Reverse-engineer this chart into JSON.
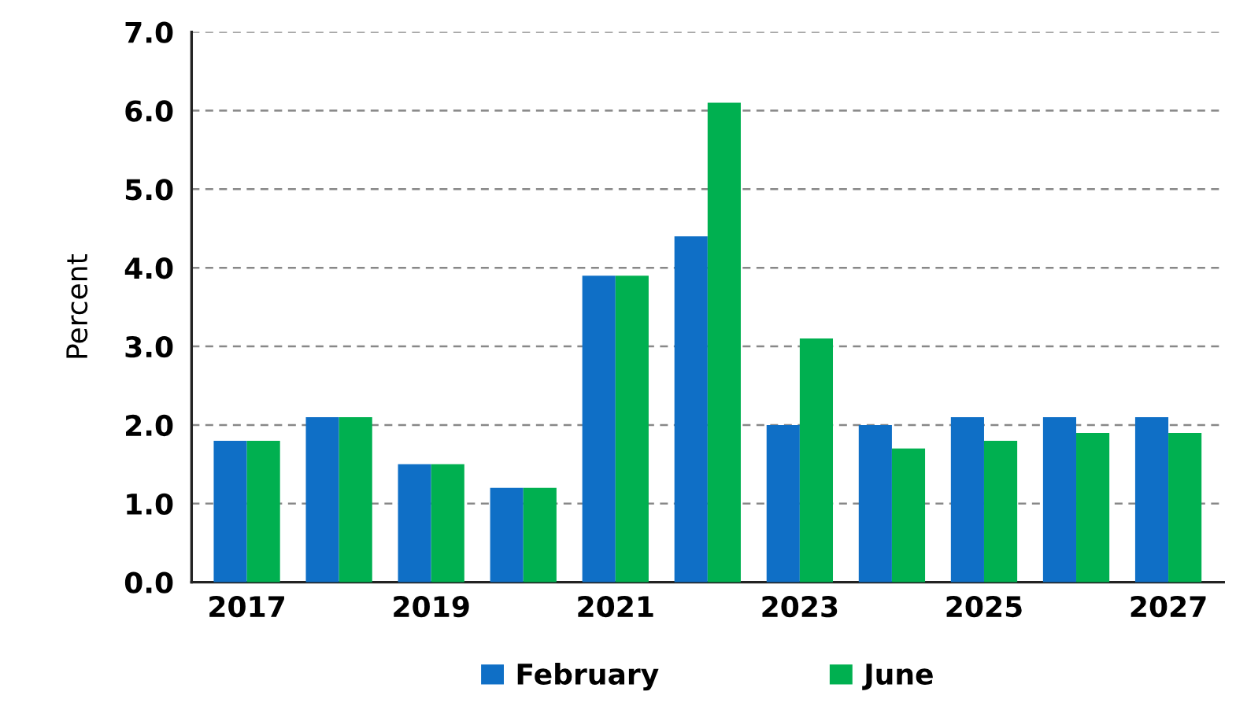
{
  "chart_data": {
    "type": "bar",
    "ylabel": "Percent",
    "categories": [
      "2017",
      null,
      "2019",
      null,
      "2021",
      null,
      "2023",
      null,
      "2025",
      null,
      "2027"
    ],
    "series": [
      {
        "name": "February",
        "color": "#0f6fc6",
        "values": [
          1.8,
          2.1,
          1.5,
          1.2,
          3.9,
          4.4,
          2.0,
          2.0,
          2.1,
          2.1,
          2.1
        ]
      },
      {
        "name": "June",
        "color": "#00b050",
        "values": [
          1.8,
          2.1,
          1.5,
          1.2,
          3.9,
          6.1,
          3.1,
          1.7,
          1.8,
          1.9,
          1.9
        ]
      }
    ],
    "ylim": [
      0,
      7
    ],
    "yticks": [
      {
        "value": 0,
        "label": "0.0"
      },
      {
        "value": 1,
        "label": "1.0"
      },
      {
        "value": 2,
        "label": "2.0"
      },
      {
        "value": 3,
        "label": "3.0"
      },
      {
        "value": 4,
        "label": "4.0"
      },
      {
        "value": 5,
        "label": "5.0"
      },
      {
        "value": 6,
        "label": "6.0"
      },
      {
        "value": 7,
        "label": "7.0"
      }
    ],
    "grid": "y",
    "legend": "bottom"
  }
}
